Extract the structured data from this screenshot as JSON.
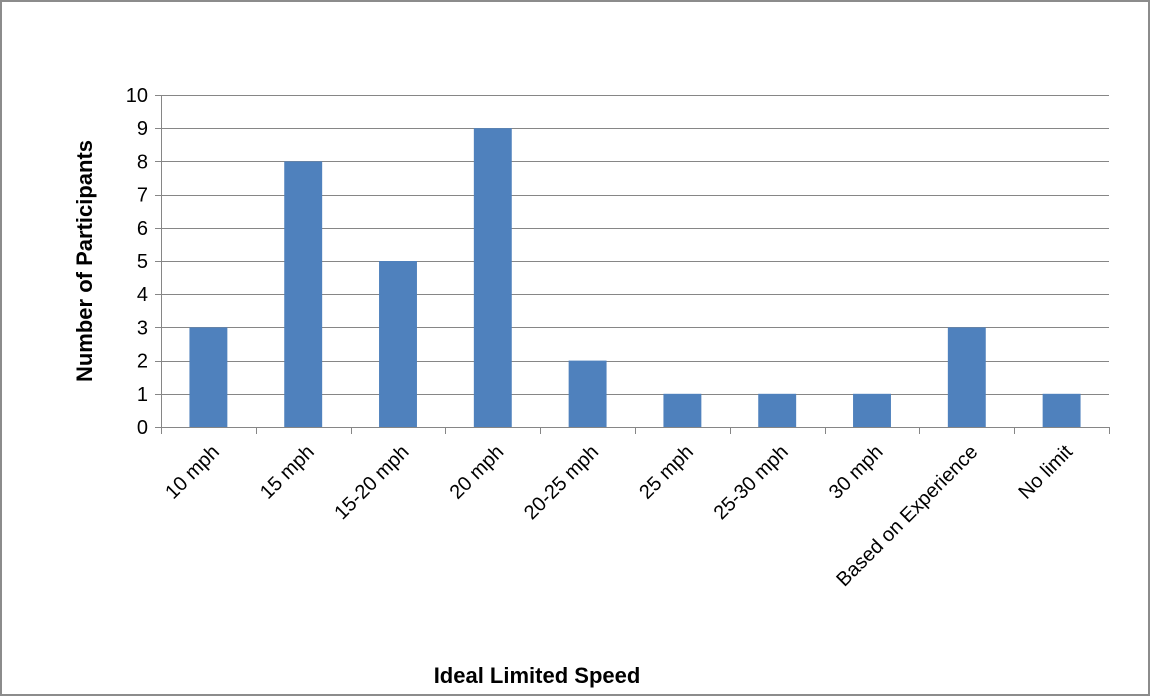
{
  "colors": {
    "bar": "#4f81bd",
    "gridline": "#868686",
    "axis": "#868686",
    "frame": "#8c8c8c"
  },
  "chart_data": {
    "type": "bar",
    "title": "",
    "xlabel": "Ideal Limited Speed",
    "ylabel": "Number of Participants",
    "categories": [
      "10 mph",
      "15 mph",
      "15-20 mph",
      "20 mph",
      "20-25 mph",
      "25 mph",
      "25-30 mph",
      "30 mph",
      "Based on Experience",
      "No limit"
    ],
    "values": [
      3,
      8,
      5,
      9,
      2,
      1,
      1,
      1,
      3,
      1
    ],
    "ylim": [
      0,
      10
    ],
    "yticks": [
      0,
      1,
      2,
      3,
      4,
      5,
      6,
      7,
      8,
      9,
      10
    ],
    "grid": true,
    "legend": "none"
  }
}
